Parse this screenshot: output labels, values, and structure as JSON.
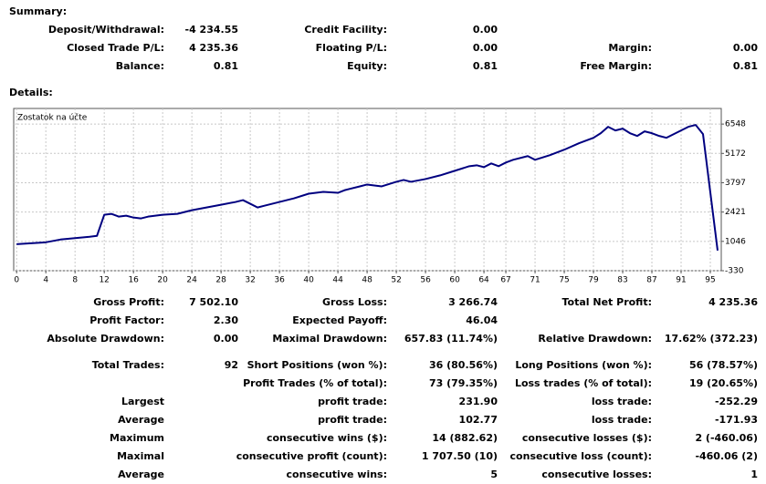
{
  "summary": {
    "title": "Summary:",
    "rows": [
      [
        "Deposit/Withdrawal:",
        "-4 234.55",
        "Credit Facility:",
        "0.00",
        null,
        null
      ],
      [
        "Closed Trade P/L:",
        "4 235.36",
        "Floating P/L:",
        "0.00",
        "Margin:",
        "0.00"
      ],
      [
        "Balance:",
        "0.81",
        "Equity:",
        "0.81",
        "Free Margin:",
        "0.81"
      ]
    ]
  },
  "details": {
    "title": "Details:",
    "rows": [
      [
        "Gross Profit:",
        "7 502.10",
        "Gross Loss:",
        "3 266.74",
        "Total Net Profit:",
        "4 235.36"
      ],
      [
        "Profit Factor:",
        "2.30",
        "Expected Payoff:",
        "46.04",
        null,
        null
      ],
      [
        "Absolute Drawdown:",
        "0.00",
        "Maximal Drawdown:",
        "657.83 (11.74%)",
        "Relative Drawdown:",
        "17.62% (372.23)"
      ],
      [
        "Total Trades:",
        "92",
        "Short Positions (won %):",
        "36 (80.56%)",
        "Long Positions (won %):",
        "56 (78.57%)"
      ],
      [
        null,
        null,
        "Profit Trades (% of total):",
        "73 (79.35%)",
        "Loss trades (% of total):",
        "19 (20.65%)"
      ],
      [
        "Largest",
        null,
        "profit trade:",
        "231.90",
        "loss trade:",
        "-252.29"
      ],
      [
        "Average",
        null,
        "profit trade:",
        "102.77",
        "loss trade:",
        "-171.93"
      ],
      [
        "Maximum",
        null,
        "consecutive wins ($):",
        "14 (882.62)",
        "consecutive losses ($):",
        "2 (-460.06)"
      ],
      [
        "Maximal",
        null,
        "consecutive profit (count):",
        "1 707.50 (10)",
        "consecutive loss (count):",
        "-460.06 (2)"
      ],
      [
        "Average",
        null,
        "consecutive wins:",
        "5",
        "consecutive losses:",
        "1"
      ]
    ]
  },
  "chart_data": {
    "type": "line",
    "x": [
      0,
      4,
      6,
      10,
      11,
      12,
      13,
      14,
      15,
      16,
      17,
      18,
      20,
      22,
      24,
      26,
      28,
      30,
      31,
      32,
      33,
      34,
      36,
      38,
      40,
      42,
      44,
      45,
      47,
      48,
      50,
      52,
      53,
      54,
      56,
      58,
      60,
      62,
      63,
      64,
      65,
      66,
      67,
      68,
      70,
      71,
      73,
      75,
      77,
      79,
      80,
      81,
      82,
      83,
      84,
      85,
      86,
      87,
      88,
      89,
      90,
      91,
      92,
      93,
      94,
      96
    ],
    "series": [
      {
        "name": "Zostatok na účte",
        "color": "#000080",
        "values": [
          917,
          1003,
          1132,
          1261,
          1304,
          2293,
          2336,
          2207,
          2250,
          2164,
          2121,
          2207,
          2293,
          2336,
          2508,
          2637,
          2766,
          2895,
          2981,
          2809,
          2637,
          2723,
          2895,
          3067,
          3282,
          3368,
          3325,
          3454,
          3626,
          3712,
          3626,
          3841,
          3927,
          3841,
          3970,
          4142,
          4357,
          4572,
          4615,
          4529,
          4701,
          4572,
          4744,
          4873,
          5045,
          4873,
          5088,
          5346,
          5647,
          5905,
          6120,
          6421,
          6249,
          6335,
          6120,
          5991,
          6206,
          6120,
          5991,
          5905,
          6077,
          6249,
          6421,
          6507,
          6077,
          616
        ]
      }
    ],
    "xlim": [
      -0.4,
      96.5
    ],
    "ylim": [
      -330,
      7280
    ],
    "xticks": [
      0,
      4,
      8,
      12,
      16,
      20,
      24,
      28,
      32,
      36,
      40,
      44,
      48,
      52,
      56,
      60,
      64,
      67,
      71,
      75,
      79,
      83,
      87,
      91,
      95
    ],
    "yticks": [
      -330,
      1046,
      2421,
      3797,
      5172,
      6548
    ],
    "grid": true
  }
}
